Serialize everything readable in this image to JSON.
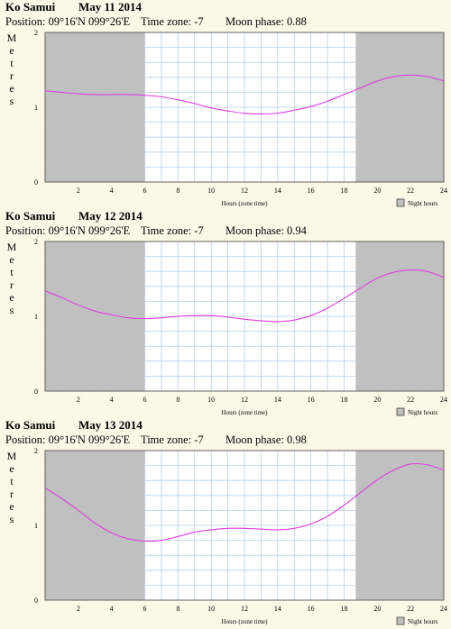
{
  "chart_data": [
    {
      "type": "line",
      "title": "Ko Samui",
      "date": "May 11 2014",
      "position": "Position: 09°16'N 099°26'E",
      "timezone": "Time zone: -7",
      "moon": "Moon phase: 0.88",
      "ylabel": "Metres",
      "xlabel": "Hours (zone time)",
      "legend": "Night hours",
      "ylim": [
        0,
        2
      ],
      "xlim": [
        0,
        24
      ],
      "night": [
        [
          0,
          6.0
        ],
        [
          18.7,
          24
        ]
      ],
      "yticks": [
        "0",
        "1",
        "2"
      ],
      "xticks": [
        "2",
        "4",
        "6",
        "8",
        "10",
        "12",
        "14",
        "16",
        "18",
        "20",
        "22",
        "24"
      ],
      "series": [
        {
          "x": [
            0,
            1,
            2,
            3,
            4,
            5,
            6,
            7,
            8,
            9,
            10,
            11,
            12,
            13,
            14,
            15,
            16,
            17,
            18,
            19,
            20,
            21,
            22,
            23,
            24
          ],
          "values": [
            1.22,
            1.2,
            1.18,
            1.17,
            1.17,
            1.17,
            1.16,
            1.14,
            1.1,
            1.05,
            0.99,
            0.95,
            0.92,
            0.91,
            0.92,
            0.96,
            1.01,
            1.08,
            1.17,
            1.26,
            1.35,
            1.41,
            1.43,
            1.41,
            1.35
          ]
        }
      ]
    },
    {
      "type": "line",
      "title": "Ko Samui",
      "date": "May 12 2014",
      "position": "Position: 09°16'N 099°26'E",
      "timezone": "Time zone: -7",
      "moon": "Moon phase: 0.94",
      "ylabel": "Metres",
      "xlabel": "Hours (zone time)",
      "legend": "Night hours",
      "ylim": [
        0,
        2
      ],
      "xlim": [
        0,
        24
      ],
      "night": [
        [
          0,
          6.0
        ],
        [
          18.7,
          24
        ]
      ],
      "yticks": [
        "0",
        "1",
        "2"
      ],
      "xticks": [
        "2",
        "4",
        "6",
        "8",
        "10",
        "12",
        "14",
        "16",
        "18",
        "20",
        "22",
        "24"
      ],
      "series": [
        {
          "x": [
            0,
            1,
            2,
            3,
            4,
            5,
            6,
            7,
            8,
            9,
            10,
            11,
            12,
            13,
            14,
            15,
            16,
            17,
            18,
            19,
            20,
            21,
            22,
            23,
            24
          ],
          "values": [
            1.34,
            1.25,
            1.15,
            1.07,
            1.02,
            0.98,
            0.97,
            0.98,
            1.0,
            1.01,
            1.01,
            0.99,
            0.96,
            0.94,
            0.93,
            0.95,
            1.01,
            1.11,
            1.24,
            1.38,
            1.51,
            1.59,
            1.62,
            1.6,
            1.52
          ]
        }
      ]
    },
    {
      "type": "line",
      "title": "Ko Samui",
      "date": "May 13 2014",
      "position": "Position: 09°16'N 099°26'E",
      "timezone": "Time zone: -7",
      "moon": "Moon phase: 0.98",
      "ylabel": "Metres",
      "xlabel": "Hours (zone time)",
      "legend": "Night hours",
      "ylim": [
        0,
        2
      ],
      "xlim": [
        0,
        24
      ],
      "night": [
        [
          0,
          6.0
        ],
        [
          18.7,
          24
        ]
      ],
      "yticks": [
        "0",
        "1",
        "2"
      ],
      "xticks": [
        "2",
        "4",
        "6",
        "8",
        "10",
        "12",
        "14",
        "16",
        "18",
        "20",
        "22",
        "24"
      ],
      "series": [
        {
          "x": [
            0,
            1,
            2,
            3,
            4,
            5,
            6,
            7,
            8,
            9,
            10,
            11,
            12,
            13,
            14,
            15,
            16,
            17,
            18,
            19,
            20,
            21,
            22,
            23,
            24
          ],
          "values": [
            1.5,
            1.36,
            1.2,
            1.03,
            0.9,
            0.82,
            0.79,
            0.8,
            0.85,
            0.91,
            0.94,
            0.96,
            0.96,
            0.95,
            0.94,
            0.96,
            1.02,
            1.12,
            1.27,
            1.44,
            1.61,
            1.74,
            1.82,
            1.81,
            1.74
          ]
        }
      ]
    }
  ],
  "colors": {
    "curve": "#e03ce0",
    "night": "#c0c0c0",
    "grid": "#b8d0e8",
    "day": "#ffffff"
  }
}
